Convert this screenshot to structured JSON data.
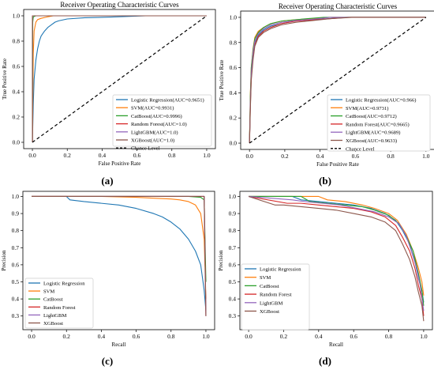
{
  "figure": {
    "colors": {
      "series": [
        "#1f77b4",
        "#ff7f0e",
        "#2ca02c",
        "#d62728",
        "#9467bd",
        "#8c564b"
      ],
      "chance": "#000000"
    },
    "panel_labels": [
      "(a)",
      "(b)",
      "(c)",
      "(d)"
    ]
  },
  "chart_data": [
    {
      "type": "line",
      "title": "Receiver Operating Characteristic Curves",
      "xlabel": "False Positive Rate",
      "ylabel": "True Positive Rate",
      "xlim": [
        -0.05,
        1.05
      ],
      "ylim": [
        -0.05,
        1.05
      ],
      "xticks": [
        "0.0",
        "0.2",
        "0.4",
        "0.6",
        "0.8",
        "1.0"
      ],
      "yticks": [
        "0.0",
        "0.2",
        "0.4",
        "0.6",
        "0.8",
        "1.0"
      ],
      "grid": false,
      "legend": "lower-right",
      "series": [
        {
          "name": "Logistic Regression(AUC=0.9651)",
          "x": [
            0,
            0.005,
            0.01,
            0.02,
            0.03,
            0.04,
            0.05,
            0.07,
            0.09,
            0.11,
            0.13,
            0.15,
            0.2,
            0.3,
            0.45,
            0.65,
            1.0
          ],
          "y": [
            0,
            0.3,
            0.5,
            0.65,
            0.74,
            0.8,
            0.84,
            0.88,
            0.91,
            0.93,
            0.95,
            0.96,
            0.975,
            0.985,
            0.99,
            1.0,
            1.0
          ]
        },
        {
          "name": "SVM(AUC=0.9931)",
          "x": [
            0,
            0.005,
            0.01,
            0.02,
            0.03,
            0.05,
            0.08,
            0.12,
            0.2,
            1.0
          ],
          "y": [
            0,
            0.7,
            0.88,
            0.95,
            0.97,
            0.98,
            0.99,
            1.0,
            1.0,
            1.0
          ]
        },
        {
          "name": "CatBoost(AUC=0.9996)",
          "x": [
            0,
            0.002,
            0.005,
            0.01,
            0.02,
            1.0
          ],
          "y": [
            0,
            0.95,
            0.99,
            0.995,
            1.0,
            1.0
          ]
        },
        {
          "name": "Random Forest(AUC=1.0)",
          "x": [
            0,
            0,
            1.0
          ],
          "y": [
            0,
            1.0,
            1.0
          ]
        },
        {
          "name": "LightGBM(AUC=1.0)",
          "x": [
            0,
            0,
            1.0
          ],
          "y": [
            0,
            1.0,
            1.0
          ]
        },
        {
          "name": "XGBoost(AUC=1.0)",
          "x": [
            0,
            0,
            1.0
          ],
          "y": [
            0,
            1.0,
            1.0
          ]
        },
        {
          "name": "Chance Level",
          "x": [
            0,
            1
          ],
          "y": [
            0,
            1
          ],
          "dashed": true
        }
      ]
    },
    {
      "type": "line",
      "title": "Receiver Operating Characteristic Curves",
      "xlabel": "False Positive Rate",
      "ylabel": "True Positive Rate",
      "xlim": [
        -0.05,
        1.05
      ],
      "ylim": [
        -0.05,
        1.05
      ],
      "xticks": [
        "0.0",
        "0.2",
        "0.4",
        "0.6",
        "0.8",
        "1.0"
      ],
      "yticks": [
        "0.0",
        "0.2",
        "0.4",
        "0.6",
        "0.8",
        "1.0"
      ],
      "grid": false,
      "legend": "lower-right",
      "series": [
        {
          "name": "Logistic Regression(AUC=0.966)",
          "x": [
            0,
            0.005,
            0.01,
            0.02,
            0.03,
            0.05,
            0.08,
            0.12,
            0.18,
            0.25,
            0.35,
            0.45,
            0.55,
            1.0
          ],
          "y": [
            0,
            0.35,
            0.55,
            0.7,
            0.8,
            0.86,
            0.9,
            0.93,
            0.95,
            0.97,
            0.98,
            0.99,
            1.0,
            1.0
          ]
        },
        {
          "name": "SVM(AUC=0.9731)",
          "x": [
            0,
            0.005,
            0.01,
            0.02,
            0.03,
            0.05,
            0.08,
            0.12,
            0.18,
            0.25,
            0.35,
            0.45,
            1.0
          ],
          "y": [
            0,
            0.4,
            0.6,
            0.75,
            0.84,
            0.89,
            0.92,
            0.95,
            0.97,
            0.98,
            0.99,
            1.0,
            1.0
          ]
        },
        {
          "name": "CatBoost(AUC=0.9712)",
          "x": [
            0,
            0.005,
            0.01,
            0.02,
            0.03,
            0.05,
            0.08,
            0.12,
            0.18,
            0.25,
            0.33,
            0.42,
            1.0
          ],
          "y": [
            0,
            0.38,
            0.6,
            0.74,
            0.83,
            0.88,
            0.92,
            0.95,
            0.97,
            0.98,
            0.99,
            1.0,
            1.0
          ]
        },
        {
          "name": "Random Forest(AUC=0.9665)",
          "x": [
            0,
            0.005,
            0.01,
            0.02,
            0.03,
            0.05,
            0.08,
            0.12,
            0.18,
            0.26,
            0.36,
            0.46,
            0.56,
            1.0
          ],
          "y": [
            0,
            0.3,
            0.52,
            0.68,
            0.78,
            0.85,
            0.89,
            0.92,
            0.95,
            0.97,
            0.98,
            0.99,
            1.0,
            1.0
          ]
        },
        {
          "name": "LightGBM(AUC=0.9689)",
          "x": [
            0,
            0.005,
            0.01,
            0.02,
            0.03,
            0.05,
            0.08,
            0.12,
            0.18,
            0.26,
            0.36,
            0.46,
            1.0
          ],
          "y": [
            0,
            0.33,
            0.56,
            0.72,
            0.81,
            0.87,
            0.91,
            0.94,
            0.96,
            0.975,
            0.985,
            1.0,
            1.0
          ]
        },
        {
          "name": "XGBoost(AUC=0.9633)",
          "x": [
            0,
            0.005,
            0.01,
            0.02,
            0.03,
            0.05,
            0.08,
            0.12,
            0.18,
            0.26,
            0.36,
            0.46,
            0.58,
            1.0
          ],
          "y": [
            0,
            0.28,
            0.5,
            0.66,
            0.77,
            0.84,
            0.88,
            0.91,
            0.94,
            0.96,
            0.975,
            0.99,
            1.0,
            1.0
          ]
        },
        {
          "name": "Chance Level",
          "x": [
            0,
            1
          ],
          "y": [
            0,
            1
          ],
          "dashed": true
        }
      ]
    },
    {
      "type": "line",
      "title": "",
      "xlabel": "Recall",
      "ylabel": "Precision",
      "xlim": [
        -0.05,
        1.05
      ],
      "ylim": [
        0.22,
        1.03
      ],
      "xticks": [
        "0.0",
        "0.2",
        "0.4",
        "0.6",
        "0.8",
        "1.0"
      ],
      "yticks": [
        "0.3",
        "0.4",
        "0.5",
        "0.6",
        "0.7",
        "0.8",
        "0.9",
        "1.0"
      ],
      "grid": false,
      "legend": "lower-left",
      "series": [
        {
          "name": "Logistic Regression",
          "x": [
            0,
            0.2,
            0.22,
            0.3,
            0.4,
            0.5,
            0.6,
            0.7,
            0.75,
            0.8,
            0.85,
            0.9,
            0.94,
            0.97,
            0.99,
            1.0
          ],
          "y": [
            1.0,
            1.0,
            0.98,
            0.97,
            0.96,
            0.95,
            0.93,
            0.9,
            0.88,
            0.85,
            0.81,
            0.75,
            0.68,
            0.6,
            0.45,
            0.33
          ]
        },
        {
          "name": "SVM",
          "x": [
            0,
            0.4,
            0.6,
            0.7,
            0.8,
            0.85,
            0.9,
            0.94,
            0.97,
            0.99,
            1.0
          ],
          "y": [
            1.0,
            1.0,
            0.995,
            0.99,
            0.985,
            0.98,
            0.97,
            0.95,
            0.9,
            0.75,
            0.4
          ]
        },
        {
          "name": "CatBoost",
          "x": [
            0,
            0.9,
            0.97,
            0.99,
            1.0
          ],
          "y": [
            1.0,
            1.0,
            0.995,
            0.98,
            0.5
          ]
        },
        {
          "name": "Random Forest",
          "x": [
            0,
            0.99,
            1.0
          ],
          "y": [
            1.0,
            1.0,
            0.3
          ]
        },
        {
          "name": "LightGBM",
          "x": [
            0,
            0.99,
            1.0
          ],
          "y": [
            1.0,
            1.0,
            0.3
          ]
        },
        {
          "name": "XGBoost",
          "x": [
            0,
            0.99,
            1.0
          ],
          "y": [
            1.0,
            1.0,
            0.3
          ]
        }
      ]
    },
    {
      "type": "line",
      "title": "",
      "xlabel": "Recall",
      "ylabel": "Precision",
      "xlim": [
        -0.05,
        1.05
      ],
      "ylim": [
        0.22,
        1.03
      ],
      "xticks": [
        "0.0",
        "0.2",
        "0.4",
        "0.6",
        "0.8",
        "1.0"
      ],
      "yticks": [
        "0.3",
        "0.4",
        "0.5",
        "0.6",
        "0.7",
        "0.8",
        "0.9",
        "1.0"
      ],
      "grid": false,
      "legend": "lower-left",
      "series": [
        {
          "name": "Logistic Regression",
          "x": [
            0,
            0.25,
            0.3,
            0.4,
            0.5,
            0.6,
            0.7,
            0.78,
            0.84,
            0.88,
            0.92,
            0.95,
            0.97,
            0.99,
            1.0
          ],
          "y": [
            1.0,
            1.0,
            0.98,
            0.97,
            0.96,
            0.95,
            0.93,
            0.9,
            0.86,
            0.8,
            0.72,
            0.62,
            0.52,
            0.45,
            0.38
          ]
        },
        {
          "name": "SVM",
          "x": [
            0,
            0.4,
            0.45,
            0.55,
            0.65,
            0.72,
            0.8,
            0.85,
            0.9,
            0.94,
            0.97,
            0.99,
            1.0
          ],
          "y": [
            1.0,
            1.0,
            0.98,
            0.97,
            0.95,
            0.93,
            0.9,
            0.86,
            0.78,
            0.68,
            0.58,
            0.5,
            0.42
          ]
        },
        {
          "name": "CatBoost",
          "x": [
            0,
            0.3,
            0.35,
            0.45,
            0.55,
            0.65,
            0.72,
            0.8,
            0.86,
            0.9,
            0.94,
            0.97,
            0.99,
            1.0
          ],
          "y": [
            1.0,
            1.0,
            0.97,
            0.96,
            0.95,
            0.94,
            0.92,
            0.89,
            0.84,
            0.77,
            0.68,
            0.55,
            0.45,
            0.36
          ]
        },
        {
          "name": "Random Forest",
          "x": [
            0,
            0.22,
            0.3,
            0.4,
            0.5,
            0.6,
            0.7,
            0.78,
            0.84,
            0.88,
            0.92,
            0.95,
            0.97,
            0.99,
            1.0
          ],
          "y": [
            1.0,
            0.96,
            0.96,
            0.95,
            0.94,
            0.93,
            0.91,
            0.88,
            0.83,
            0.76,
            0.68,
            0.58,
            0.48,
            0.4,
            0.3
          ]
        },
        {
          "name": "LightGBM",
          "x": [
            0,
            0.25,
            0.32,
            0.42,
            0.52,
            0.62,
            0.72,
            0.8,
            0.86,
            0.9,
            0.93,
            0.96,
            0.98,
            1.0
          ],
          "y": [
            1.0,
            0.98,
            0.97,
            0.96,
            0.95,
            0.93,
            0.91,
            0.88,
            0.84,
            0.77,
            0.68,
            0.58,
            0.48,
            0.33
          ]
        },
        {
          "name": "XGBoost",
          "x": [
            0,
            0.15,
            0.2,
            0.3,
            0.4,
            0.5,
            0.6,
            0.7,
            0.78,
            0.84,
            0.88,
            0.92,
            0.95,
            0.97,
            0.99,
            1.0
          ],
          "y": [
            1.0,
            0.95,
            0.95,
            0.94,
            0.93,
            0.92,
            0.9,
            0.88,
            0.85,
            0.8,
            0.72,
            0.63,
            0.53,
            0.44,
            0.36,
            0.27
          ]
        }
      ]
    }
  ]
}
